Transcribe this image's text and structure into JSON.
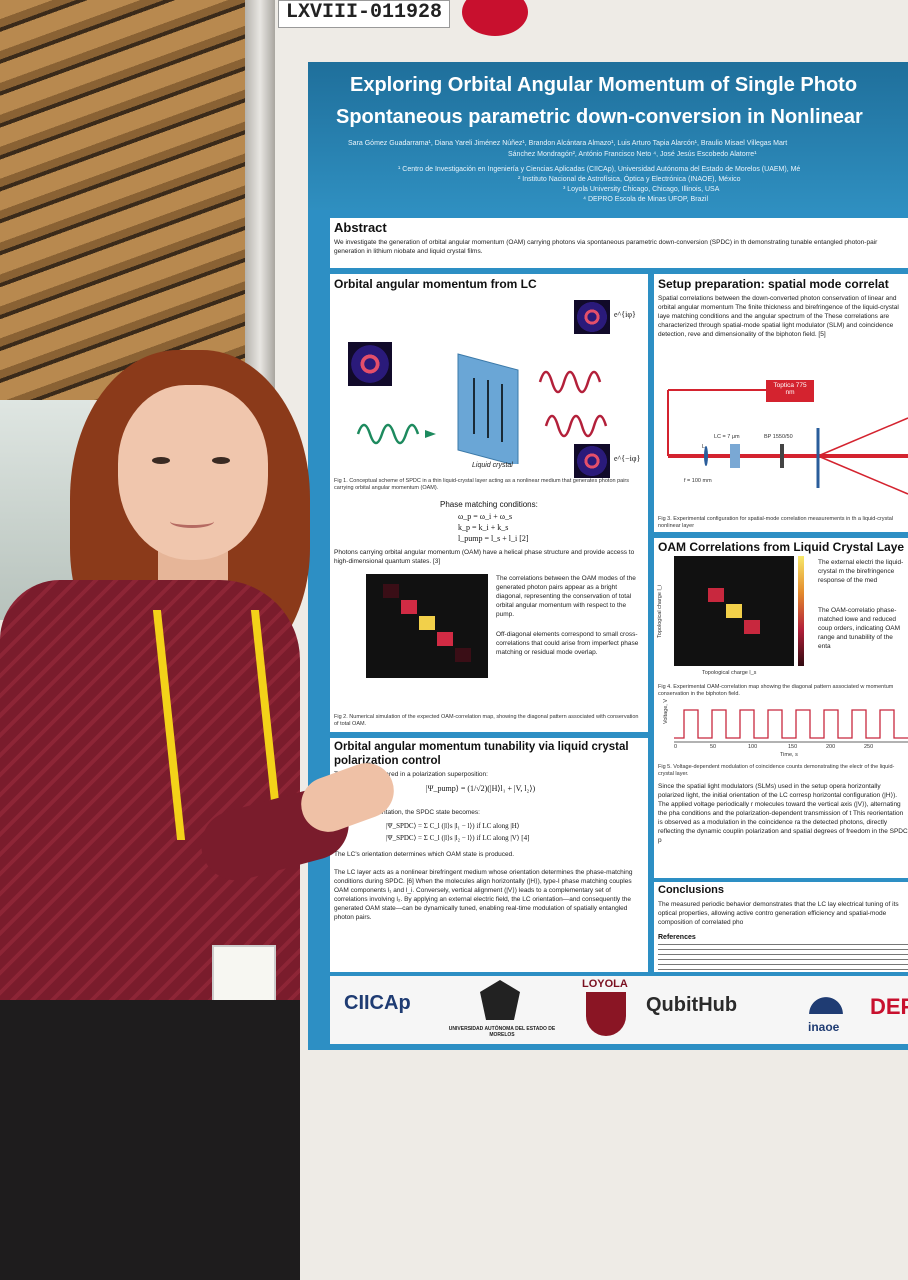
{
  "tag": "LXVIII-011928",
  "poster": {
    "title_line1": "Exploring Orbital Angular Momentum of Single Photo",
    "title_line2": "Spontaneous parametric down-conversion in Nonlinear",
    "authors_line1": "Sara Gómez Guadarrama¹, Diana Yareli Jiménez Núñez¹, Brandon Alcántara Almazo¹, Luis Arturo Tapia Alarcón¹, Braulio Misael Villegas Mart",
    "authors_line2": "Sánchez Mondragón², António Francisco Neto ⁴, José Jesús Escobedo Alatorre¹",
    "affil1": "¹ Centro de Investigación en Ingeniería y Ciencias Aplicadas (CIICAp), Universidad Autónoma del Estado de Morelos (UAEM), Mé",
    "affil2": "² Instituto Nacional de Astrofísica, Óptica y Electrónica (INAOE), México",
    "affil3": "³ Loyola University Chicago, Chicago, Illinois, USA",
    "affil4": "⁴ DEPRO Escola de Minas UFOP, Brazil",
    "abstract_title": "Abstract",
    "abstract_text": "We investigate the generation of orbital angular momentum (OAM) carrying photons via spontaneous parametric down-conversion (SPDC) in th demonstrating tunable entangled photon-pair generation in lithium niobate and liquid crystal films.",
    "s1_title": "Orbital angular momentum from LC",
    "s1_label_lc": "Liquid crystal",
    "s1_label_eplus": "e^{iφ}",
    "s1_label_eminus": "e^{−iφ}",
    "fig1_cap": "Fig 1. Conceptual scheme of SPDC in a thin liquid-crystal layer acting as a nonlinear medium that generates photon pairs carrying orbital angular momentum (OAM).",
    "pm_title": "Phase matching conditions:",
    "pm_eq1": "ω_p = ω_i + ω_s",
    "pm_eq2": "k_p = k_i + k_s",
    "pm_eq3": "l_pump = l_s + l_i   [2]",
    "s1_text": "Photons carrying orbital angular momentum (OAM) have a helical phase structure and provide access to high-dimensional quantum states. [3]",
    "s1_text2": "The correlations between the OAM modes of the generated photon pairs appear as a bright diagonal, representing the conservation of total orbital angular momentum with respect to the pump.",
    "s1_text3": "Off-diagonal elements correspond to small cross-correlations that could arise from imperfect phase matching or residual mode overlap.",
    "fig2_cap": "Fig 2. Numerical simulation of the expected OAM-correlation map, showing the diagonal pattern associated with conservation of total OAM.",
    "s2_title": "Orbital angular momentum tunability via liquid crystal polarization control",
    "s2_text1": "The pump ... prepared in a polarization superposition:",
    "s2_eq1": "|Ψ_pump⟩ = (1/√2)(|H⟩l₁ + |V, l₂⟩)",
    "s2_text2": "... on the LC orientation, the SPDC state becomes:",
    "s2_eq2": "|Ψ_SPDC⟩ = Σ C_l (|l⟩s |l₁ − l⟩) if LC along |H⟩",
    "s2_eq3": "|Ψ_SPDC⟩ = Σ C_l (|l⟩s |l₂ − l⟩) if LC along |V⟩  [4]",
    "s2_text3": "The LC's orientation determines which OAM state is produced.",
    "s2_text4": "The LC layer acts as a nonlinear birefringent medium whose orientation determines the phase-matching conditions during SPDC. [6] When the molecules align horizontally (|H⟩), type-I phase matching couples OAM components l₁ and l_i. Conversely, vertical alignment (|V⟩) leads to a complementary set of correlations involving l₂. By applying an external electric field, the LC orientation—and consequently the generated OAM state—can be dynamically tuned, enabling real-time modulation of spatially entangled photon pairs.",
    "s3_title": "Setup preparation: spatial mode correlat",
    "s3_text": "Spatial correlations between the down-converted photon conservation of linear and orbital angular momentum The finite thickness and birefringence of the liquid-crystal laye matching conditions and the angular spectrum of the These correlations are characterized through spatial-mode spatial light modulator (SLM) and coincidence detection, reve and dimensionality of the biphoton field. [5]",
    "setup_laser": "Toptica 775 nm",
    "setup_lc": "LC = 7 μm",
    "setup_bp": "BP 1550/50",
    "setup_l": "L",
    "setup_f": "f = 100 mm",
    "fig3_cap": "Fig 3. Experimental configuration for spatial-mode correlation measurements in th a liquid-crystal nonlinear layer",
    "s4_title": "OAM Correlations from Liquid Crystal Laye",
    "s4_text": "The external electri the liquid-crystal m the birefringence response of the med",
    "s4_text2": "The OAM-correlatio phase-matched lowe and reduced coup orders, indicating OAM range and tunability of the enta",
    "s4_ylabel": "Topological charge l_i",
    "s4_xlabel": "Topological charge l_s",
    "fig4_cap": "Fig 4. Experimental OAM-correlation map showing the diagonal pattern associated w momentum conservation in the biphoton field.",
    "volt_ylabel": "Voltage, V",
    "volt_xlabel": "Time, s",
    "volt_ticks": [
      "0",
      "50",
      "100",
      "150",
      "200",
      "250"
    ],
    "fig5_cap": "Fig 5. Voltage-dependent modulation of coincidence counts demonstrating the electr of the liquid-crystal layer.",
    "s5_text": "Since the spatial light modulators (SLMs) used in the setup opera horizontally polarized light, the initial orientation of the LC corresp horizontal configuration (|H⟩). The applied voltage periodically r molecules toward the vertical axis (|V⟩), alternating the pha conditions and the polarization-dependent transmission of t This reorientation is observed as a modulation in the coincidence ra the detected photons, directly reflecting the dynamic couplin polarization and spatial degrees of freedom in the SPDC p",
    "concl_title": "Conclusions",
    "concl_text": "The measured periodic behavior demonstrates that the LC lay electrical tuning of its optical properties, allowing active contro generation efficiency and spatial-mode composition of correlated pho",
    "refs_title": "References",
    "logo1": "CIICAp",
    "logo2": "UNIVERSIDAD AUTÓNOMA DEL ESTADO DE MORELOS",
    "logo3": "LOYOLA",
    "logo4": "QubitHub",
    "logo5": "inaoe",
    "logo6": "DEPR"
  },
  "colors": {
    "poster_blue": "#2d8fc4",
    "shirt": "#7a1c2c",
    "lanyard": "#f3d219",
    "tag_red": "#c8102e"
  }
}
